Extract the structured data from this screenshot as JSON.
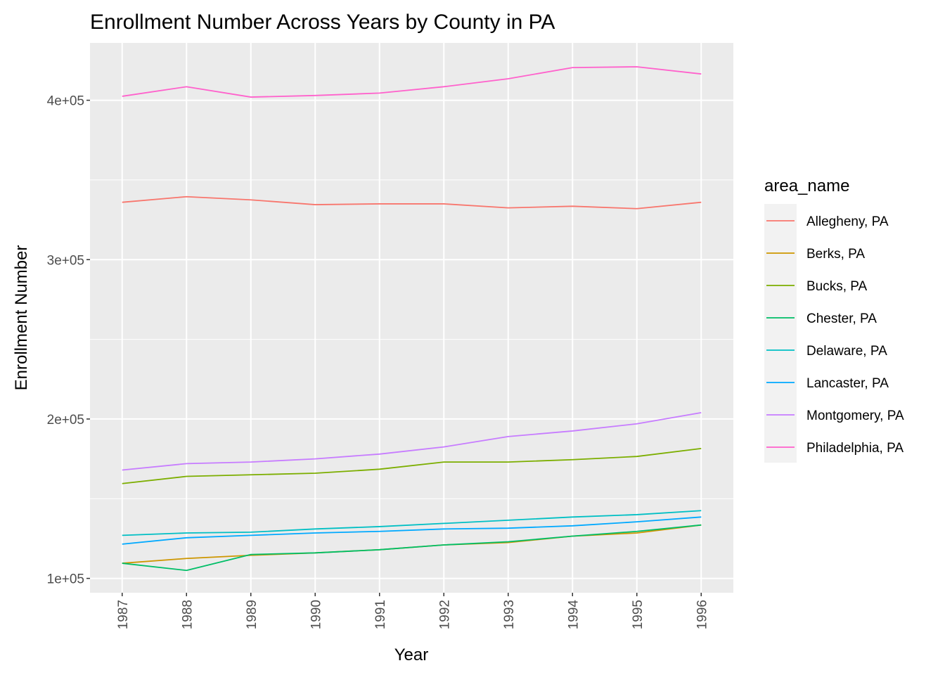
{
  "chart_data": {
    "type": "line",
    "title": "Enrollment Number Across Years by County in PA",
    "xlabel": "Year",
    "ylabel": "Enrollment Number",
    "x": [
      1987,
      1988,
      1989,
      1990,
      1991,
      1992,
      1993,
      1994,
      1995,
      1996
    ],
    "ylim": [
      91000,
      436000
    ],
    "y_ticks": [
      100000,
      200000,
      300000,
      400000
    ],
    "y_tick_labels": [
      "1e+05",
      "2e+05",
      "3e+05",
      "4e+05"
    ],
    "legend_title": "area_name",
    "legend_position": "right",
    "grid": true,
    "series": [
      {
        "name": "Allegheny, PA",
        "color": "#F8766D",
        "values": [
          336000,
          339500,
          337500,
          334500,
          335000,
          335000,
          332500,
          333500,
          332000,
          336000
        ]
      },
      {
        "name": "Berks, PA",
        "color": "#CD9600",
        "values": [
          109500,
          112500,
          114500,
          116000,
          118000,
          121000,
          122500,
          126500,
          128500,
          133500
        ]
      },
      {
        "name": "Bucks, PA",
        "color": "#7CAE00",
        "values": [
          159500,
          164000,
          165000,
          166000,
          168500,
          173000,
          173000,
          174500,
          176500,
          181500
        ]
      },
      {
        "name": "Chester, PA",
        "color": "#00BE67",
        "values": [
          109500,
          105000,
          115000,
          116000,
          118000,
          121000,
          123000,
          126500,
          129500,
          133500
        ]
      },
      {
        "name": "Delaware, PA",
        "color": "#00BFC4",
        "values": [
          127000,
          128500,
          129000,
          131000,
          132500,
          134500,
          136500,
          138500,
          140000,
          142500
        ]
      },
      {
        "name": "Lancaster, PA",
        "color": "#00A9FF",
        "values": [
          121500,
          125500,
          127000,
          128500,
          129500,
          131000,
          131500,
          133000,
          135500,
          138500
        ]
      },
      {
        "name": "Montgomery, PA",
        "color": "#C77CFF",
        "values": [
          168000,
          172000,
          173000,
          175000,
          178000,
          182500,
          189000,
          192500,
          197000,
          204000
        ]
      },
      {
        "name": "Philadelphia, PA",
        "color": "#FF61CC",
        "values": [
          402500,
          408500,
          402000,
          403000,
          404500,
          408500,
          413500,
          420500,
          421000,
          416500
        ]
      }
    ]
  }
}
